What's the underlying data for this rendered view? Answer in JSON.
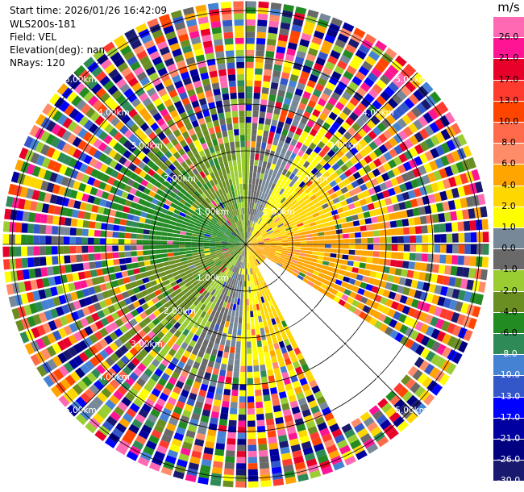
{
  "header": {
    "start_time": "Start time: 2026/01/26 16:42:09",
    "instrument": "WLS200s-181",
    "field": "Field: VEL",
    "elevation": "Elevation(deg): nan",
    "nrays": "NRays: 120"
  },
  "chart_data": {
    "type": "heatmap",
    "projection": "polar (PPI)",
    "range_rings_km": [
      1.0,
      2.0,
      3.0,
      4.0,
      5.0
    ],
    "range_ring_labels": [
      "1.00km",
      "2.00km",
      "3.00km",
      "4.00km",
      "5.00km"
    ],
    "max_range_km": 5.2,
    "n_rays": 120,
    "radial_lines_deg": [
      0,
      45,
      90,
      135,
      180,
      225,
      270,
      315
    ],
    "gap_azimuths_deg": [
      123,
      153
    ],
    "colorbar": {
      "unit": "m/s",
      "tick_labels": [
        "26.0",
        "21.0",
        "17.0",
        "13.0",
        "10.0",
        "8.0",
        "6.0",
        "4.0",
        "2.0",
        "1.0",
        "0.0",
        "-1.0",
        "-2.0",
        "-4.0",
        "-6.0",
        "-8.0",
        "-10.0",
        "-13.0",
        "-17.0",
        "-21.0",
        "-26.0",
        "-30.0"
      ],
      "colors": [
        "#ff69b4",
        "#ff1493",
        "#e8002a",
        "#ff3b30",
        "#ff4500",
        "#ff6a4a",
        "#ff8c69",
        "#ffa500",
        "#ffd700",
        "#ffff00",
        "#778899",
        "#696969",
        "#9acd32",
        "#6b8e23",
        "#228b22",
        "#2e8b57",
        "#4682d4",
        "#3357c8",
        "#0000ff",
        "#0000a0",
        "#000080",
        "#191970"
      ]
    }
  }
}
